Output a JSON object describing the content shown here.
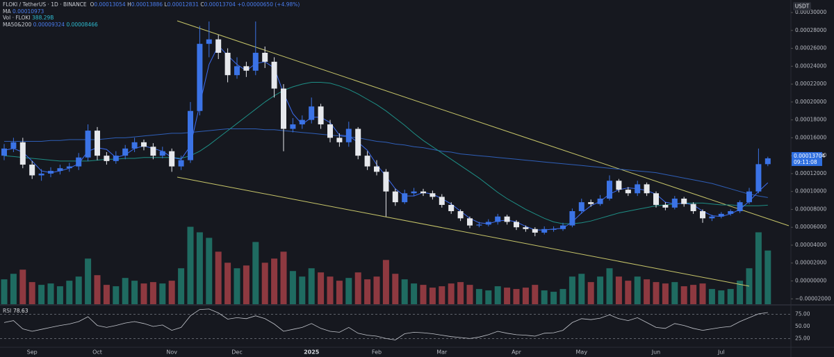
{
  "chart_data": {
    "type": "candlestick",
    "header": {
      "symbol": "FLOKI / TetherUS · 1D · BINANCE",
      "o_label": "O",
      "h_label": "H",
      "l_label": "L",
      "c_label": "C",
      "change": "+0.00000650 (+4.98%)",
      "time": "09:11:08"
    },
    "axis_label": "USDT",
    "categories": [
      null,
      null,
      null,
      "Sep",
      null,
      null,
      null,
      null,
      null,
      null,
      "Oct",
      null,
      null,
      null,
      null,
      null,
      null,
      null,
      "Nov",
      null,
      null,
      null,
      null,
      null,
      null,
      "Dec",
      null,
      null,
      null,
      null,
      null,
      null,
      null,
      "2025",
      null,
      null,
      null,
      null,
      null,
      null,
      "Feb",
      null,
      null,
      null,
      null,
      null,
      null,
      "Mar",
      null,
      null,
      null,
      null,
      null,
      null,
      null,
      "Apr",
      null,
      null,
      null,
      null,
      null,
      null,
      "May",
      null,
      null,
      null,
      null,
      null,
      null,
      null,
      "Jun",
      null,
      null,
      null,
      null,
      null,
      null,
      "Jul",
      null,
      null,
      null,
      null,
      null
    ],
    "open": [
      0.00014,
      0.000148,
      0.000155,
      0.00013,
      0.000118,
      0.00012,
      0.000123,
      0.000126,
      0.000128,
      0.000138,
      0.000168,
      0.00014,
      0.000134,
      0.00014,
      0.000148,
      0.000155,
      0.00015,
      0.00014,
      0.000145,
      0.000128,
      0.000135,
      0.00019,
      0.000265,
      0.00027,
      0.000255,
      0.00023,
      0.00024,
      0.000235,
      0.000255,
      0.000245,
      0.000215,
      0.00017,
      0.000175,
      0.00018,
      0.000195,
      0.000175,
      0.00016,
      0.000155,
      0.00017,
      0.00014,
      0.000128,
      0.000122,
      0.0001,
      8.8e-05,
      9.8e-05,
      0.0001,
      9.8e-05,
      9.4e-05,
      8.5e-05,
      7.8e-05,
      7e-05,
      6.2e-05,
      6.3e-05,
      6.6e-05,
      7.2e-05,
      6.6e-05,
      6e-05,
      5.8e-05,
      5.4e-05,
      5.8e-05,
      5.8e-05,
      6.2e-05,
      7.8e-05,
      8.8e-05,
      8.6e-05,
      9.2e-05,
      0.000112,
      0.000102,
      9.8e-05,
      0.000108,
      9.8e-05,
      8.5e-05,
      8.2e-05,
      9.2e-05,
      8.6e-05,
      7.8e-05,
      7e-05,
      7.2e-05,
      7.5e-05,
      7.8e-05,
      8.8e-05,
      0.0001,
      0.00013054
    ],
    "high": [
      0.000153,
      0.00016,
      0.00016,
      0.000134,
      0.000125,
      0.000127,
      0.00013,
      0.000132,
      0.000143,
      0.000175,
      0.000172,
      0.000144,
      0.000145,
      0.000152,
      0.00016,
      0.000158,
      0.000154,
      0.00015,
      0.000148,
      0.00014,
      0.0002,
      0.000285,
      0.00029,
      0.000275,
      0.00026,
      0.00025,
      0.000245,
      0.00029,
      0.000262,
      0.00025,
      0.00022,
      0.000182,
      0.000185,
      0.000205,
      0.000198,
      0.00018,
      0.000165,
      0.000178,
      0.000172,
      0.000145,
      0.000135,
      0.000125,
      0.000103,
      0.000102,
      0.000104,
      0.000103,
      0.000101,
      9.7e-05,
      8.8e-05,
      8e-05,
      7.2e-05,
      6.6e-05,
      6.9e-05,
      7.5e-05,
      7.4e-05,
      6.8e-05,
      6.2e-05,
      6e-05,
      6.1e-05,
      6.1e-05,
      6.5e-05,
      8.1e-05,
      9.2e-05,
      9.1e-05,
      9.6e-05,
      0.000118,
      0.000114,
      0.000105,
      0.000112,
      0.00011,
      0.0001,
      8.8e-05,
      9.5e-05,
      9.4e-05,
      8.8e-05,
      8e-05,
      7.4e-05,
      7.7e-05,
      8e-05,
      9e-05,
      0.000104,
      0.000148,
      0.00013886
    ],
    "low": [
      0.000135,
      0.000144,
      0.000126,
      0.000114,
      0.000112,
      0.000116,
      0.000119,
      0.000122,
      0.000124,
      0.000134,
      0.000135,
      0.00013,
      0.000131,
      0.000136,
      0.000144,
      0.000146,
      0.000136,
      0.000137,
      0.000122,
      0.000124,
      0.000132,
      0.000185,
      0.00025,
      0.000248,
      0.000222,
      0.000226,
      0.000228,
      0.00023,
      0.000238,
      0.000205,
      0.000145,
      0.000166,
      0.00017,
      0.000176,
      0.00017,
      0.000155,
      0.00015,
      0.00015,
      0.000136,
      0.000124,
      0.000118,
      7.2e-05,
      8.4e-05,
      8.6e-05,
      9.5e-05,
      9.5e-05,
      9.1e-05,
      8.2e-05,
      7.5e-05,
      6.7e-05,
      5.9e-05,
      6e-05,
      6.1e-05,
      6.3e-05,
      6.3e-05,
      5.7e-05,
      5.5e-05,
      5e-05,
      5.2e-05,
      5.5e-05,
      5.6e-05,
      6e-05,
      7.5e-05,
      8.3e-05,
      8.4e-05,
      9e-05,
      9.9e-05,
      9.5e-05,
      9.5e-05,
      9.5e-05,
      8.2e-05,
      7.9e-05,
      8e-05,
      8.3e-05,
      7.5e-05,
      6.5e-05,
      6.7e-05,
      7e-05,
      7.3e-05,
      7.6e-05,
      8.6e-05,
      9.8e-05,
      0.00012831
    ],
    "close": [
      0.000148,
      0.000155,
      0.00013,
      0.000118,
      0.00012,
      0.000123,
      0.000126,
      0.000128,
      0.000138,
      0.000168,
      0.00014,
      0.000134,
      0.00014,
      0.000148,
      0.000155,
      0.00015,
      0.00014,
      0.000145,
      0.000128,
      0.000135,
      0.00019,
      0.000265,
      0.00027,
      0.000255,
      0.00023,
      0.00024,
      0.000235,
      0.000255,
      0.000245,
      0.000215,
      0.00017,
      0.000175,
      0.00018,
      0.000195,
      0.000175,
      0.00016,
      0.000155,
      0.00017,
      0.00014,
      0.000128,
      0.000122,
      0.0001,
      8.8e-05,
      9.8e-05,
      0.0001,
      9.8e-05,
      9.4e-05,
      8.5e-05,
      7.8e-05,
      7e-05,
      6.2e-05,
      6.3e-05,
      6.6e-05,
      7.2e-05,
      6.6e-05,
      6e-05,
      5.8e-05,
      5.4e-05,
      5.8e-05,
      5.8e-05,
      6.2e-05,
      7.8e-05,
      8.8e-05,
      8.6e-05,
      9.2e-05,
      0.000112,
      0.000102,
      9.8e-05,
      0.000108,
      9.8e-05,
      8.5e-05,
      8.2e-05,
      9.2e-05,
      8.6e-05,
      7.8e-05,
      7e-05,
      7.2e-05,
      7.5e-05,
      7.8e-05,
      8.8e-05,
      0.0001,
      0.00013054,
      0.00013704
    ],
    "up_color": "#3b73e6",
    "down_color": "#e6e8ec",
    "ylim": [
      -2.6e-05,
      0.000314
    ],
    "yticks": [
      {
        "value": 0.0003,
        "label": "0.00030000"
      },
      {
        "value": 0.00028,
        "label": "0.00028000"
      },
      {
        "value": 0.00026,
        "label": "0.00026000"
      },
      {
        "value": 0.00024,
        "label": "0.00024000"
      },
      {
        "value": 0.00022,
        "label": "0.00022000"
      },
      {
        "value": 0.0002,
        "label": "0.00020000"
      },
      {
        "value": 0.00018,
        "label": "0.00018000"
      },
      {
        "value": 0.00016,
        "label": "0.00016000"
      },
      {
        "value": 0.00014,
        "label": "0.00014000"
      },
      {
        "value": 0.00012,
        "label": "0.00012000"
      },
      {
        "value": 0.0001,
        "label": "0.00010000"
      },
      {
        "value": 8e-05,
        "label": "0.00008000"
      },
      {
        "value": 6e-05,
        "label": "0.00006000"
      },
      {
        "value": 4e-05,
        "label": "0.00004000"
      },
      {
        "value": 2e-05,
        "label": "0.00002000"
      },
      {
        "value": 0,
        "label": "0.00000000"
      },
      {
        "value": -2e-05,
        "label": "−0.00002000"
      }
    ],
    "ma": {
      "name": "MA",
      "color": "#3d6df2",
      "values": [
        0.000146,
        0.000148,
        0.000144,
        0.000134,
        0.000123,
        0.000121,
        0.000123,
        0.000126,
        0.000131,
        0.000145,
        0.000149,
        0.000147,
        0.000138,
        0.000141,
        0.000148,
        0.000151,
        0.000148,
        0.000145,
        0.000138,
        0.000136,
        0.000151,
        0.000197,
        0.000242,
        0.000263,
        0.000252,
        0.000242,
        0.000235,
        0.000243,
        0.000245,
        0.000238,
        0.00021,
        0.000187,
        0.000175,
        0.000183,
        0.000183,
        0.000177,
        0.000163,
        0.000162,
        0.000155,
        0.000146,
        0.00013,
        0.000117,
        0.000103,
        9.5e-05,
        9.5e-05,
        9.9e-05,
        9.7e-05,
        9.2e-05,
        8.6e-05,
        7.8e-05,
        7e-05,
        6.5e-05,
        6.4e-05,
        6.7e-05,
        6.8e-05,
        6.6e-05,
        6.1e-05,
        5.7e-05,
        5.7e-05,
        5.8e-05,
        5.9e-05,
        6.6e-05,
        7.6e-05,
        8.4e-05,
        8.9e-05,
        9.7e-05,
        0.000102,
        0.000104,
        0.000103,
        0.000101,
        9.7e-05,
        8.8e-05,
        8.6e-05,
        8.7e-05,
        8.5e-05,
        7.8e-05,
        7.3e-05,
        7.2e-05,
        7.5e-05,
        8e-05,
        8.9e-05,
        0.0001,
        0.00010973
      ]
    },
    "ma_long": {
      "name": "MA50&200",
      "series": [
        {
          "color": "#2f5fb8",
          "values": [
            0.000156,
            0.000156,
            0.000156,
            0.000156,
            0.000156,
            0.000157,
            0.000157,
            0.000158,
            0.000158,
            0.000158,
            0.000158,
            0.000159,
            0.00016,
            0.00016,
            0.000161,
            0.000162,
            0.000163,
            0.000164,
            0.000165,
            0.000165,
            0.000166,
            0.000167,
            0.000168,
            0.000169,
            0.00017,
            0.00017,
            0.00017,
            0.00017,
            0.000169,
            0.000169,
            0.000168,
            0.000167,
            0.000166,
            0.000165,
            0.000164,
            0.000163,
            0.000162,
            0.000161,
            0.00016,
            0.000158,
            0.000156,
            0.000155,
            0.000153,
            0.000152,
            0.00015,
            0.000149,
            0.000147,
            0.000145,
            0.000144,
            0.000142,
            0.000141,
            0.00014,
            0.000139,
            0.000138,
            0.000137,
            0.000136,
            0.000135,
            0.000134,
            0.000133,
            0.000132,
            0.000131,
            0.00013,
            0.000129,
            0.000128,
            0.000127,
            0.000126,
            0.000125,
            0.000124,
            0.000123,
            0.000122,
            0.000121,
            0.000119,
            0.000117,
            0.000115,
            0.000113,
            0.000111,
            0.000109,
            0.000106,
            0.000103,
            0.0001,
            9.7e-05,
            9.5e-05,
            9.324e-05
          ]
        },
        {
          "color": "#1e8f86",
          "values": [
            0.00014,
            0.000139,
            0.000138,
            0.000137,
            0.000136,
            0.000135,
            0.000134,
            0.000134,
            0.000134,
            0.000134,
            0.000135,
            0.000136,
            0.000136,
            0.000137,
            0.000137,
            0.000138,
            0.000138,
            0.000138,
            0.000138,
            0.000137,
            0.00014,
            0.000145,
            0.000152,
            0.00016,
            0.000168,
            0.000176,
            0.000184,
            0.000192,
            0.0002,
            0.000207,
            0.000213,
            0.000217,
            0.00022,
            0.000222,
            0.000222,
            0.000221,
            0.000218,
            0.000214,
            0.000209,
            0.000203,
            0.000197,
            0.00019,
            0.000182,
            0.000174,
            0.000165,
            0.000157,
            0.00015,
            0.000143,
            0.000136,
            0.000129,
            0.000122,
            0.000115,
            0.000107,
            9.9e-05,
            9.2e-05,
            8.6e-05,
            8e-05,
            7.5e-05,
            7e-05,
            6.6e-05,
            6.4e-05,
            6.4e-05,
            6.5e-05,
            6.7e-05,
            7e-05,
            7.3e-05,
            7.6e-05,
            7.8e-05,
            8e-05,
            8.2e-05,
            8.4e-05,
            8.5e-05,
            8.6e-05,
            8.7e-05,
            8.7e-05,
            8.7e-05,
            8.6e-05,
            8.5e-05,
            8.5e-05,
            8.4e-05,
            8.4e-05,
            8.4e-05,
            8.466e-05
          ]
        }
      ]
    },
    "volume": {
      "name": "Vol · FLOKI",
      "value_label": "388.29B",
      "up_color": "#1f6b61",
      "down_color": "#8e3940",
      "ylim": [
        0,
        2200
      ],
      "values": [
        180,
        220,
        250,
        160,
        140,
        150,
        130,
        170,
        200,
        330,
        210,
        140,
        130,
        190,
        170,
        150,
        160,
        150,
        170,
        260,
        560,
        520,
        480,
        380,
        300,
        260,
        280,
        450,
        300,
        330,
        380,
        240,
        200,
        260,
        230,
        200,
        170,
        190,
        230,
        180,
        200,
        320,
        220,
        180,
        150,
        140,
        120,
        130,
        150,
        160,
        140,
        110,
        100,
        130,
        120,
        110,
        120,
        140,
        100,
        90,
        110,
        200,
        220,
        160,
        200,
        260,
        200,
        170,
        200,
        180,
        160,
        150,
        160,
        130,
        140,
        150,
        110,
        100,
        110,
        170,
        260,
        520,
        388.29
      ]
    },
    "rsi": {
      "name": "RSI",
      "color": "#c4c7ce",
      "ylim": [
        7,
        93
      ],
      "yticks": [
        {
          "value": 75,
          "label": "75.00"
        },
        {
          "value": 50,
          "label": "50.00"
        },
        {
          "value": 25,
          "label": "25.00"
        }
      ],
      "values": [
        58,
        62,
        45,
        40,
        44,
        48,
        52,
        55,
        60,
        70,
        52,
        48,
        52,
        57,
        60,
        56,
        50,
        53,
        42,
        48,
        72,
        85,
        86,
        78,
        65,
        68,
        66,
        72,
        66,
        55,
        40,
        44,
        48,
        56,
        46,
        40,
        38,
        48,
        36,
        32,
        30,
        25,
        22,
        35,
        38,
        37,
        35,
        32,
        29,
        27,
        25,
        28,
        33,
        40,
        36,
        33,
        32,
        30,
        36,
        37,
        42,
        58,
        66,
        64,
        67,
        74,
        66,
        62,
        68,
        58,
        48,
        46,
        56,
        52,
        46,
        42,
        45,
        48,
        50,
        60,
        68,
        76,
        78.63
      ]
    }
  }
}
